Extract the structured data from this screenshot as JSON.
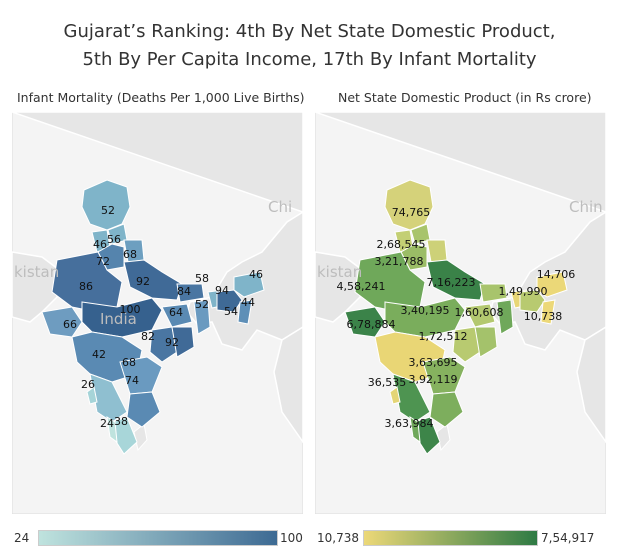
{
  "title": {
    "line1": "Gujarat’s Ranking: 4th By Net State Domestic Product,",
    "line2": "5th By Per Capita Income, 17th By Infant Mortality"
  },
  "colors": {
    "imr_low": "#bfe3de",
    "imr_high": "#3d6a93",
    "nsdp_low": "#ecd878",
    "nsdp_high": "#2e7a44",
    "land": "#e6e6e6",
    "water": "#f4f4f4",
    "border": "#ffffff"
  },
  "imr_map": {
    "label": "Infant Mortality (Deaths Per 1,000 Live Births)",
    "legend_min": "24",
    "legend_max": "100",
    "place_labels": [
      "kistan",
      "India",
      "Chi"
    ],
    "values": [
      "52",
      "46",
      "56",
      "72",
      "68",
      "86",
      "92",
      "58",
      "46",
      "94",
      "84",
      "44",
      "100",
      "52",
      "54",
      "66",
      "64",
      "82",
      "92",
      "42",
      "68",
      "26",
      "74",
      "24",
      "38"
    ]
  },
  "nsdp_map": {
    "label": "Net State Domestic Product (in Rs crore)",
    "legend_min": "10,738",
    "legend_max": "7,54,917",
    "place_labels": [
      "kistan",
      "Chin"
    ],
    "values": [
      "74,765",
      "2,68,545",
      "3,21,788",
      "7,16,223",
      "4,58,241",
      "14,706",
      "1,49,990",
      "3,40,195",
      "1,60,608",
      "6,78,884",
      "10,738",
      "1,72,512",
      "3,63,695",
      "36,535",
      "3,92,119",
      "3,63,984"
    ]
  }
}
